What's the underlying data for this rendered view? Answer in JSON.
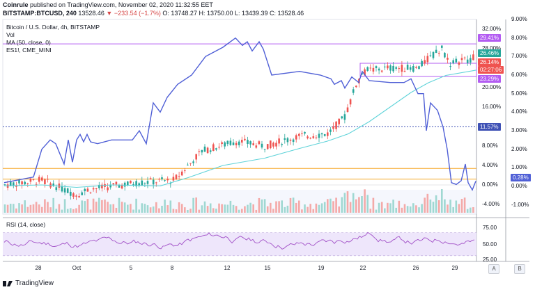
{
  "header": {
    "publisher": "Coinrule",
    "published_line": " published on TradingView.com, November 02, 2020 11:32:55 EET",
    "symbol": "BITSTAMP:BTCUSD, 240",
    "price": "13528.46",
    "change": "▼ −233.54 (−1.7%)",
    "ohlc": "O: 13748.27  H: 13750.00  L: 13439.39  C: 13528.46"
  },
  "overlay": {
    "title": "Bitcoin / U.S. Dollar, 4h, BITSTAMP",
    "vol": "Vol",
    "ma": "MA (50, close, 0)",
    "es": "ES1!, CME_MINI"
  },
  "right_axis_pct": [
    "32.00%",
    "28.00%",
    "24.00%",
    "20.00%",
    "16.00%",
    "12.00%",
    "8.00%",
    "4.00%",
    "0.00%",
    "-4.00%"
  ],
  "far_axis_pct": [
    "9.00%",
    "8.00%",
    "7.00%",
    "6.00%",
    "5.00%",
    "4.00%",
    "3.00%",
    "2.00%",
    "1.00%",
    "0.00%",
    "-1.00%"
  ],
  "badges": {
    "b1": "29.41%",
    "b2": "26.46%",
    "b3": "26.14%",
    "b4": "02:27:06",
    "b5": "23.29%",
    "b6": "11.57%",
    "b7": "0.28%"
  },
  "rsi": {
    "label": "RSI (14, close)",
    "levels": [
      "75.00",
      "50.00",
      "25.00"
    ]
  },
  "x_labels": [
    "28",
    "Oct",
    "5",
    "8",
    "12",
    "15",
    "19",
    "22",
    "26",
    "29"
  ],
  "corner_a": "A",
  "corner_b": "B",
  "brand": "TradingView",
  "colors": {
    "up": "#26a69a",
    "down": "#ef5350",
    "ma": "#5fd3d9",
    "es": "#4f5fd6",
    "rsi": "#a14fc7",
    "level_purple": "#b35cf2",
    "level_orange": "#f5a623",
    "level_blue": "#3f51b5"
  },
  "chart_data": {
    "type": "line",
    "series": [
      {
        "name": "Bitcoin / U.S. Dollar, 4h, BITSTAMP",
        "x": [
          "28",
          "Oct",
          "5",
          "8",
          "12",
          "15",
          "19",
          "22",
          "26",
          "29"
        ],
        "values": [
          0.0,
          -1.0,
          0.5,
          1.0,
          8.5,
          9.0,
          10.0,
          26.0,
          27.5,
          26.1
        ]
      },
      {
        "name": "MA (50, close, 0)",
        "x": [
          "28",
          "Oct",
          "5",
          "8",
          "12",
          "15",
          "19",
          "22",
          "26",
          "29"
        ],
        "values": [
          0.0,
          -0.5,
          0.0,
          0.5,
          4.0,
          6.0,
          7.5,
          12.0,
          20.0,
          23.3
        ]
      },
      {
        "name": "ES1!, CME_MINI",
        "x": [
          "28",
          "Oct",
          "5",
          "8",
          "12",
          "15",
          "19",
          "22",
          "26",
          "29"
        ],
        "values": [
          0.5,
          3.0,
          3.5,
          5.5,
          8.0,
          7.0,
          5.0,
          6.0,
          4.0,
          -0.5
        ]
      },
      {
        "name": "RSI (14, close)",
        "x": [
          "28",
          "Oct",
          "5",
          "8",
          "12",
          "15",
          "19",
          "22",
          "26",
          "29"
        ],
        "values": [
          50,
          45,
          55,
          50,
          68,
          60,
          62,
          80,
          62,
          48
        ]
      }
    ],
    "y_left_range_pct": [
      -6,
      34
    ],
    "y_right_range_pct": [
      -1.5,
      9.0
    ],
    "rsi_range": [
      25,
      85
    ]
  }
}
